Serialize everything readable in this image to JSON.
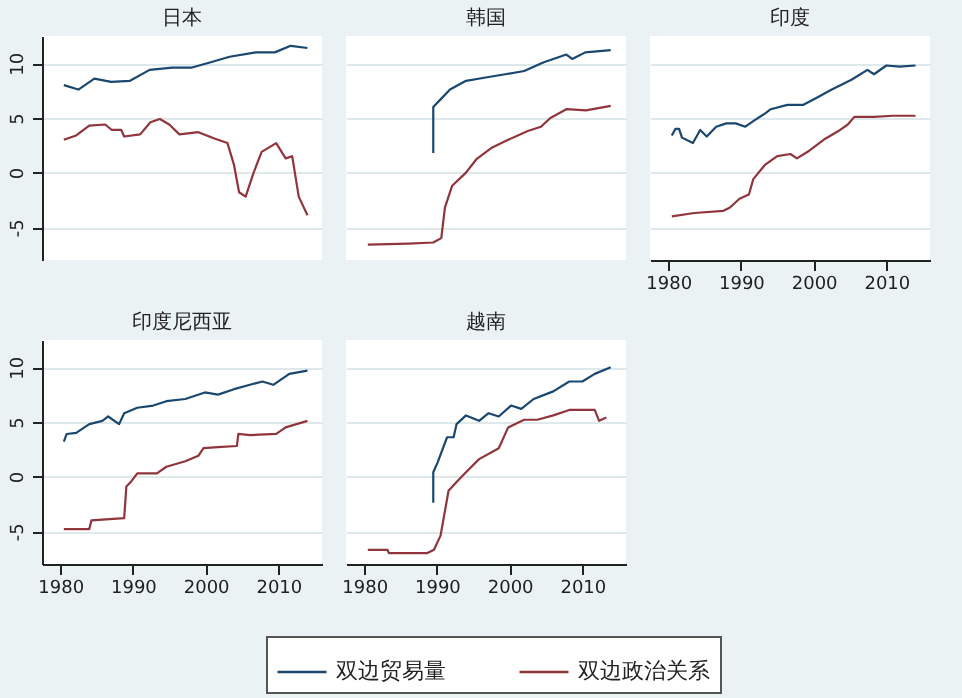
{
  "chart_data": [
    {
      "type": "line",
      "title": "日本",
      "xlim": [
        1977.5,
        2016
      ],
      "ylim": [
        -8,
        12.5
      ],
      "xticks": [
        1980,
        1990,
        2000,
        2010
      ],
      "yticks": [
        -5,
        0,
        5,
        10
      ],
      "grid": "y",
      "legend": "bottom",
      "tick_labels": "y",
      "series": [
        {
          "name": "双边贸易量",
          "color": "#1a476f",
          "x": [
            1980.5,
            1982.5,
            1984.7,
            1987,
            1989.6,
            1992.3,
            1995.4,
            1998,
            2000.7,
            2003.3,
            2006.9,
            2009.5,
            2011.7,
            2014
          ],
          "values": [
            8.0,
            7.6,
            8.6,
            8.3,
            8.4,
            9.4,
            9.6,
            9.6,
            10.1,
            10.6,
            11.0,
            11.0,
            11.6,
            11.4
          ]
        },
        {
          "name": "双边政治关系",
          "color": "#90353b",
          "x": [
            1980.5,
            1982.2,
            1984,
            1986.2,
            1987.1,
            1988.4,
            1988.8,
            1991,
            1992.4,
            1993.7,
            1995,
            1996.4,
            1999,
            2001.3,
            2003,
            2003.9,
            2004.6,
            2005.5,
            2006.6,
            2007.7,
            2009.7,
            2011,
            2011.9,
            2012.8,
            2014
          ],
          "values": [
            3.0,
            3.4,
            4.3,
            4.4,
            3.9,
            3.9,
            3.3,
            3.5,
            4.6,
            4.9,
            4.4,
            3.5,
            3.7,
            3.1,
            2.7,
            0.7,
            -1.8,
            -2.2,
            0.0,
            1.9,
            2.7,
            1.3,
            1.5,
            -2.2,
            -3.9
          ]
        }
      ]
    },
    {
      "type": "line",
      "title": "韩国",
      "xlim": [
        1977.5,
        2016
      ],
      "ylim": [
        -8,
        12.5
      ],
      "xticks": [
        1980,
        1990,
        2000,
        2010
      ],
      "yticks": [
        -5,
        0,
        5,
        10
      ],
      "grid": "y",
      "legend": "bottom",
      "tick_labels": false,
      "series": [
        {
          "name": "双边贸易量",
          "color": "#1a476f",
          "x": [
            1989.5,
            1989.5,
            1990.5,
            1991.8,
            1994,
            1996.7,
            1999.4,
            2002,
            2004.7,
            2007.8,
            2008.6,
            2010.4,
            2013.9
          ],
          "values": [
            1.8,
            6.0,
            6.7,
            7.6,
            8.4,
            8.7,
            9.0,
            9.3,
            10.1,
            10.8,
            10.4,
            11.0,
            11.2
          ]
        },
        {
          "name": "双边政治关系",
          "color": "#90353b",
          "x": [
            1980.5,
            1986.1,
            1989.5,
            1990.6,
            1991.1,
            1992.1,
            1994,
            1995.4,
            1997.6,
            1999.8,
            2002.5,
            2004.3,
            2005.6,
            2007.8,
            2010.5,
            2013.9
          ],
          "values": [
            -6.6,
            -6.5,
            -6.4,
            -6.0,
            -3.2,
            -1.2,
            0.0,
            1.2,
            2.3,
            3.0,
            3.8,
            4.2,
            5.0,
            5.8,
            5.7,
            6.1
          ]
        }
      ]
    },
    {
      "type": "line",
      "title": "印度",
      "xlim": [
        1977.5,
        2016
      ],
      "ylim": [
        -8,
        12.5
      ],
      "xticks": [
        1980,
        1990,
        2000,
        2010
      ],
      "yticks": [
        -5,
        0,
        5,
        10
      ],
      "grid": "y",
      "legend": "bottom",
      "tick_labels": "x",
      "series": [
        {
          "name": "双边贸易量",
          "color": "#1a476f",
          "x": [
            1980.5,
            1981,
            1981.5,
            1981.9,
            1983.4,
            1984.4,
            1985.3,
            1986.6,
            1988,
            1989.3,
            1990.6,
            1991.9,
            1993.3,
            1994.1,
            1996.4,
            1998.6,
            2000.3,
            2002.5,
            2005.2,
            2007.4,
            2008.3,
            2010,
            2011.8,
            2014
          ],
          "values": [
            3.4,
            4.0,
            4.0,
            3.2,
            2.7,
            3.9,
            3.3,
            4.2,
            4.5,
            4.5,
            4.2,
            4.8,
            5.4,
            5.8,
            6.2,
            6.2,
            6.8,
            7.6,
            8.5,
            9.4,
            9.0,
            9.8,
            9.7,
            9.8
          ]
        },
        {
          "name": "双边政治关系",
          "color": "#90353b",
          "x": [
            1980.5,
            1983.6,
            1987.6,
            1988.5,
            1989.8,
            1991.1,
            1991.7,
            1993.3,
            1995,
            1996.8,
            1997.7,
            1999.4,
            2001.6,
            2003.4,
            2004.7,
            2005.6,
            2008.3,
            2010.9,
            2014
          ],
          "values": [
            -4.0,
            -3.7,
            -3.5,
            -3.2,
            -2.4,
            -2.0,
            -0.6,
            0.7,
            1.5,
            1.7,
            1.3,
            2.0,
            3.1,
            3.8,
            4.4,
            5.1,
            5.1,
            5.2,
            5.2
          ]
        }
      ]
    },
    {
      "type": "line",
      "title": "印度尼西亚",
      "xlim": [
        1977.5,
        2016
      ],
      "ylim": [
        -8,
        12.5
      ],
      "xticks": [
        1980,
        1990,
        2000,
        2010
      ],
      "yticks": [
        -5,
        0,
        5,
        10
      ],
      "grid": "y",
      "legend": "bottom",
      "series": [
        {
          "name": "双边贸易量",
          "color": "#1a476f",
          "x": [
            1980.5,
            1980.9,
            1982.2,
            1984,
            1985.8,
            1986.6,
            1988.1,
            1988.8,
            1990.6,
            1992.8,
            1994.6,
            1997.2,
            1999.9,
            2001.7,
            2003.9,
            2006.1,
            2007.8,
            2009.3,
            2011.5,
            2014
          ],
          "values": [
            3.2,
            3.9,
            4.0,
            4.8,
            5.1,
            5.5,
            4.8,
            5.8,
            6.3,
            6.5,
            6.9,
            7.1,
            7.7,
            7.5,
            8.0,
            8.4,
            8.7,
            8.4,
            9.4,
            9.7
          ]
        },
        {
          "name": "双边政治关系",
          "color": "#90353b",
          "x": [
            1980.5,
            1984,
            1984.3,
            1988.8,
            1989.1,
            1989.7,
            1990.6,
            1993.3,
            1994.6,
            1997.2,
            1999,
            1999.7,
            2001.7,
            2004.3,
            2004.5,
            2006.1,
            2009.7,
            2011,
            2014
          ],
          "values": [
            -4.8,
            -4.8,
            -4.0,
            -3.8,
            -0.9,
            -0.5,
            0.3,
            0.3,
            0.9,
            1.4,
            1.9,
            2.6,
            2.7,
            2.8,
            3.9,
            3.8,
            3.9,
            4.5,
            5.1
          ]
        }
      ]
    },
    {
      "type": "line",
      "title": "越南",
      "xlim": [
        1977.5,
        2016
      ],
      "ylim": [
        -8,
        12.5
      ],
      "xticks": [
        1980,
        1990,
        2000,
        2010
      ],
      "yticks": [
        -5,
        0,
        5,
        10
      ],
      "grid": "y",
      "legend": "bottom",
      "tick_labels": "x",
      "series": [
        {
          "name": "双边贸易量",
          "color": "#1a476f",
          "x": [
            1989.5,
            1989.5,
            1990.1,
            1991.4,
            1992.3,
            1992.7,
            1994,
            1995.8,
            1997.1,
            1998.5,
            2000.2,
            2001.6,
            2003.3,
            2006,
            2008.2,
            2010,
            2011.7,
            2013.9
          ],
          "values": [
            -2.4,
            0.4,
            1.3,
            3.6,
            3.6,
            4.8,
            5.6,
            5.1,
            5.8,
            5.5,
            6.5,
            6.2,
            7.1,
            7.8,
            8.7,
            8.7,
            9.4,
            10.0
          ]
        },
        {
          "name": "双边政治关系",
          "color": "#90353b",
          "x": [
            1980.5,
            1983.2,
            1983.4,
            1988.7,
            1989.6,
            1990.5,
            1991.6,
            1992.7,
            1994,
            1995.8,
            1998.5,
            1999.8,
            2002,
            2003.8,
            2006,
            2008.2,
            2011.7,
            2012.3,
            2013.3
          ],
          "values": [
            -6.7,
            -6.7,
            -7.0,
            -7.0,
            -6.7,
            -5.4,
            -1.3,
            -0.5,
            0.4,
            1.6,
            2.6,
            4.5,
            5.2,
            5.2,
            5.6,
            6.1,
            6.1,
            5.1,
            5.4
          ]
        }
      ]
    }
  ]
}
